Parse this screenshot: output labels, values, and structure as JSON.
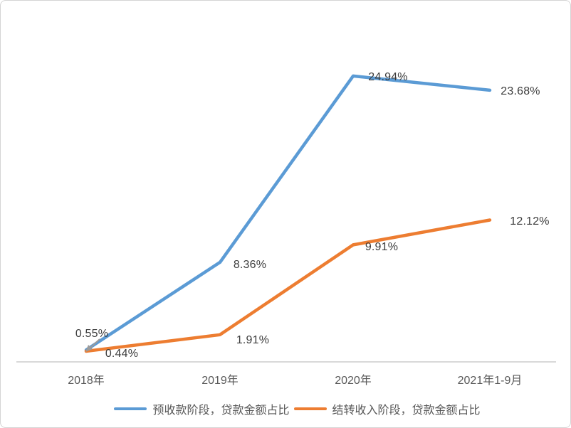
{
  "chart": {
    "background": "#ffffff",
    "border_color": "#d4d4d4",
    "axis_line_color": "#d9d9d9",
    "data_label_color": "#3d3d3d",
    "axis_label_color": "#595959",
    "annotation_arrow_color": "#9b9b9b"
  },
  "chart_data": {
    "type": "line",
    "title": "",
    "categories": [
      "2018年",
      "2019年",
      "2020年",
      "2021年1-9月"
    ],
    "series": [
      {
        "name": "预收款阶段，贷款金额占比",
        "color": "#5B9BD5",
        "values": [
          0.55,
          8.36,
          24.94,
          23.68
        ],
        "labels": [
          "0.55%",
          "8.36%",
          "24.94%",
          "23.68%"
        ]
      },
      {
        "name": "结转收入阶段，贷款金额占比",
        "color": "#ED7D31",
        "values": [
          0.44,
          1.91,
          9.91,
          12.12
        ],
        "labels": [
          "0.44%",
          "1.91%",
          "9.91%",
          "12.12%"
        ]
      }
    ],
    "ylim": [
      0,
      26
    ],
    "grid": false,
    "legend_position": "bottom",
    "annotations": [
      {
        "type": "arrow",
        "target": "2018 data points"
      }
    ]
  }
}
